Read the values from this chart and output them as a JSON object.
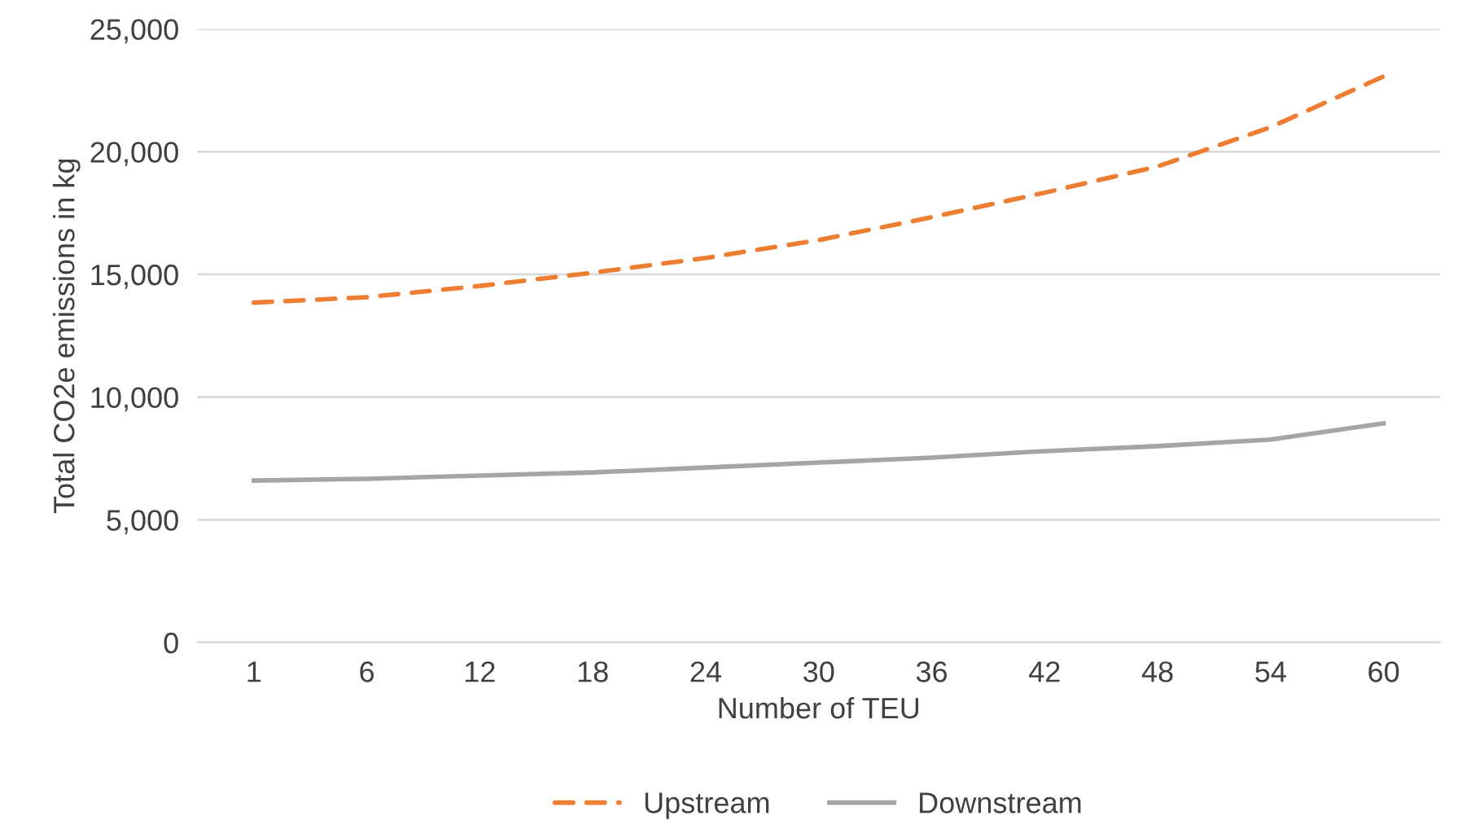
{
  "chart_data": {
    "type": "line",
    "xlabel": "Number of TEU",
    "ylabel": "Total CO2e emissions in kg",
    "categories": [
      "1",
      "6",
      "12",
      "18",
      "24",
      "30",
      "36",
      "42",
      "48",
      "54",
      "60"
    ],
    "series": [
      {
        "name": "Upstream",
        "color": "#ed7d31",
        "line_style": "dashed",
        "values": [
          13850,
          14070,
          14530,
          15070,
          15670,
          16400,
          17330,
          18330,
          19400,
          21000,
          23070
        ]
      },
      {
        "name": "Downstream",
        "color": "#a5a5a5",
        "line_style": "solid",
        "values": [
          6600,
          6670,
          6800,
          6930,
          7130,
          7330,
          7530,
          7800,
          8000,
          8270,
          8930
        ]
      }
    ],
    "ylim": [
      0,
      25000
    ],
    "yticks": [
      {
        "value": 0,
        "label": "0"
      },
      {
        "value": 5000,
        "label": "5,000"
      },
      {
        "value": 10000,
        "label": "10,000"
      },
      {
        "value": 15000,
        "label": "15,000"
      },
      {
        "value": 20000,
        "label": "20,000"
      },
      {
        "value": 25000,
        "label": "25,000"
      }
    ],
    "grid": "y",
    "legend": "bottom",
    "marker": "none"
  }
}
